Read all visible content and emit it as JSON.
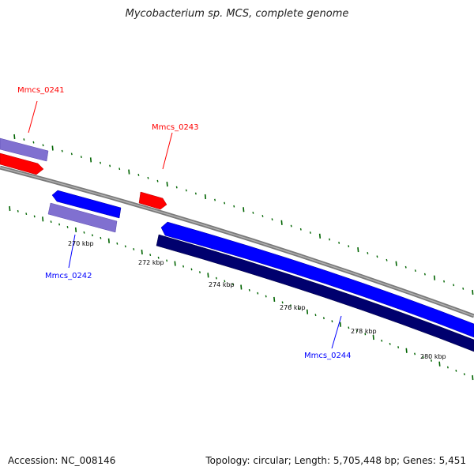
{
  "title": "Mycobacterium sp. MCS, complete genome",
  "footer": {
    "accession": "Accession: NC_008146",
    "summary": "Topology: circular; Length: 5,705,448 bp; Genes: 5,451"
  },
  "colors": {
    "forward_gene": "#ff0000",
    "reverse_gene": "#0000ff",
    "cds_forward": "#8070d0",
    "cds_reverse": "#8070d0",
    "cds_dark": "#00006e",
    "backbone": "#808080",
    "tick": "#006400"
  },
  "scale_labels": [
    "270 kbp",
    "272 kbp",
    "274 kbp",
    "276 kbp",
    "278 kbp",
    "280 kbp"
  ],
  "genes": [
    {
      "id": "Mmcs_0241",
      "strand": "forward",
      "color": "#ff0000"
    },
    {
      "id": "Mmcs_0242",
      "strand": "reverse",
      "color": "#0000ff"
    },
    {
      "id": "Mmcs_0243",
      "strand": "forward",
      "color": "#ff0000"
    },
    {
      "id": "Mmcs_0244",
      "strand": "reverse",
      "color": "#0000ff"
    }
  ]
}
